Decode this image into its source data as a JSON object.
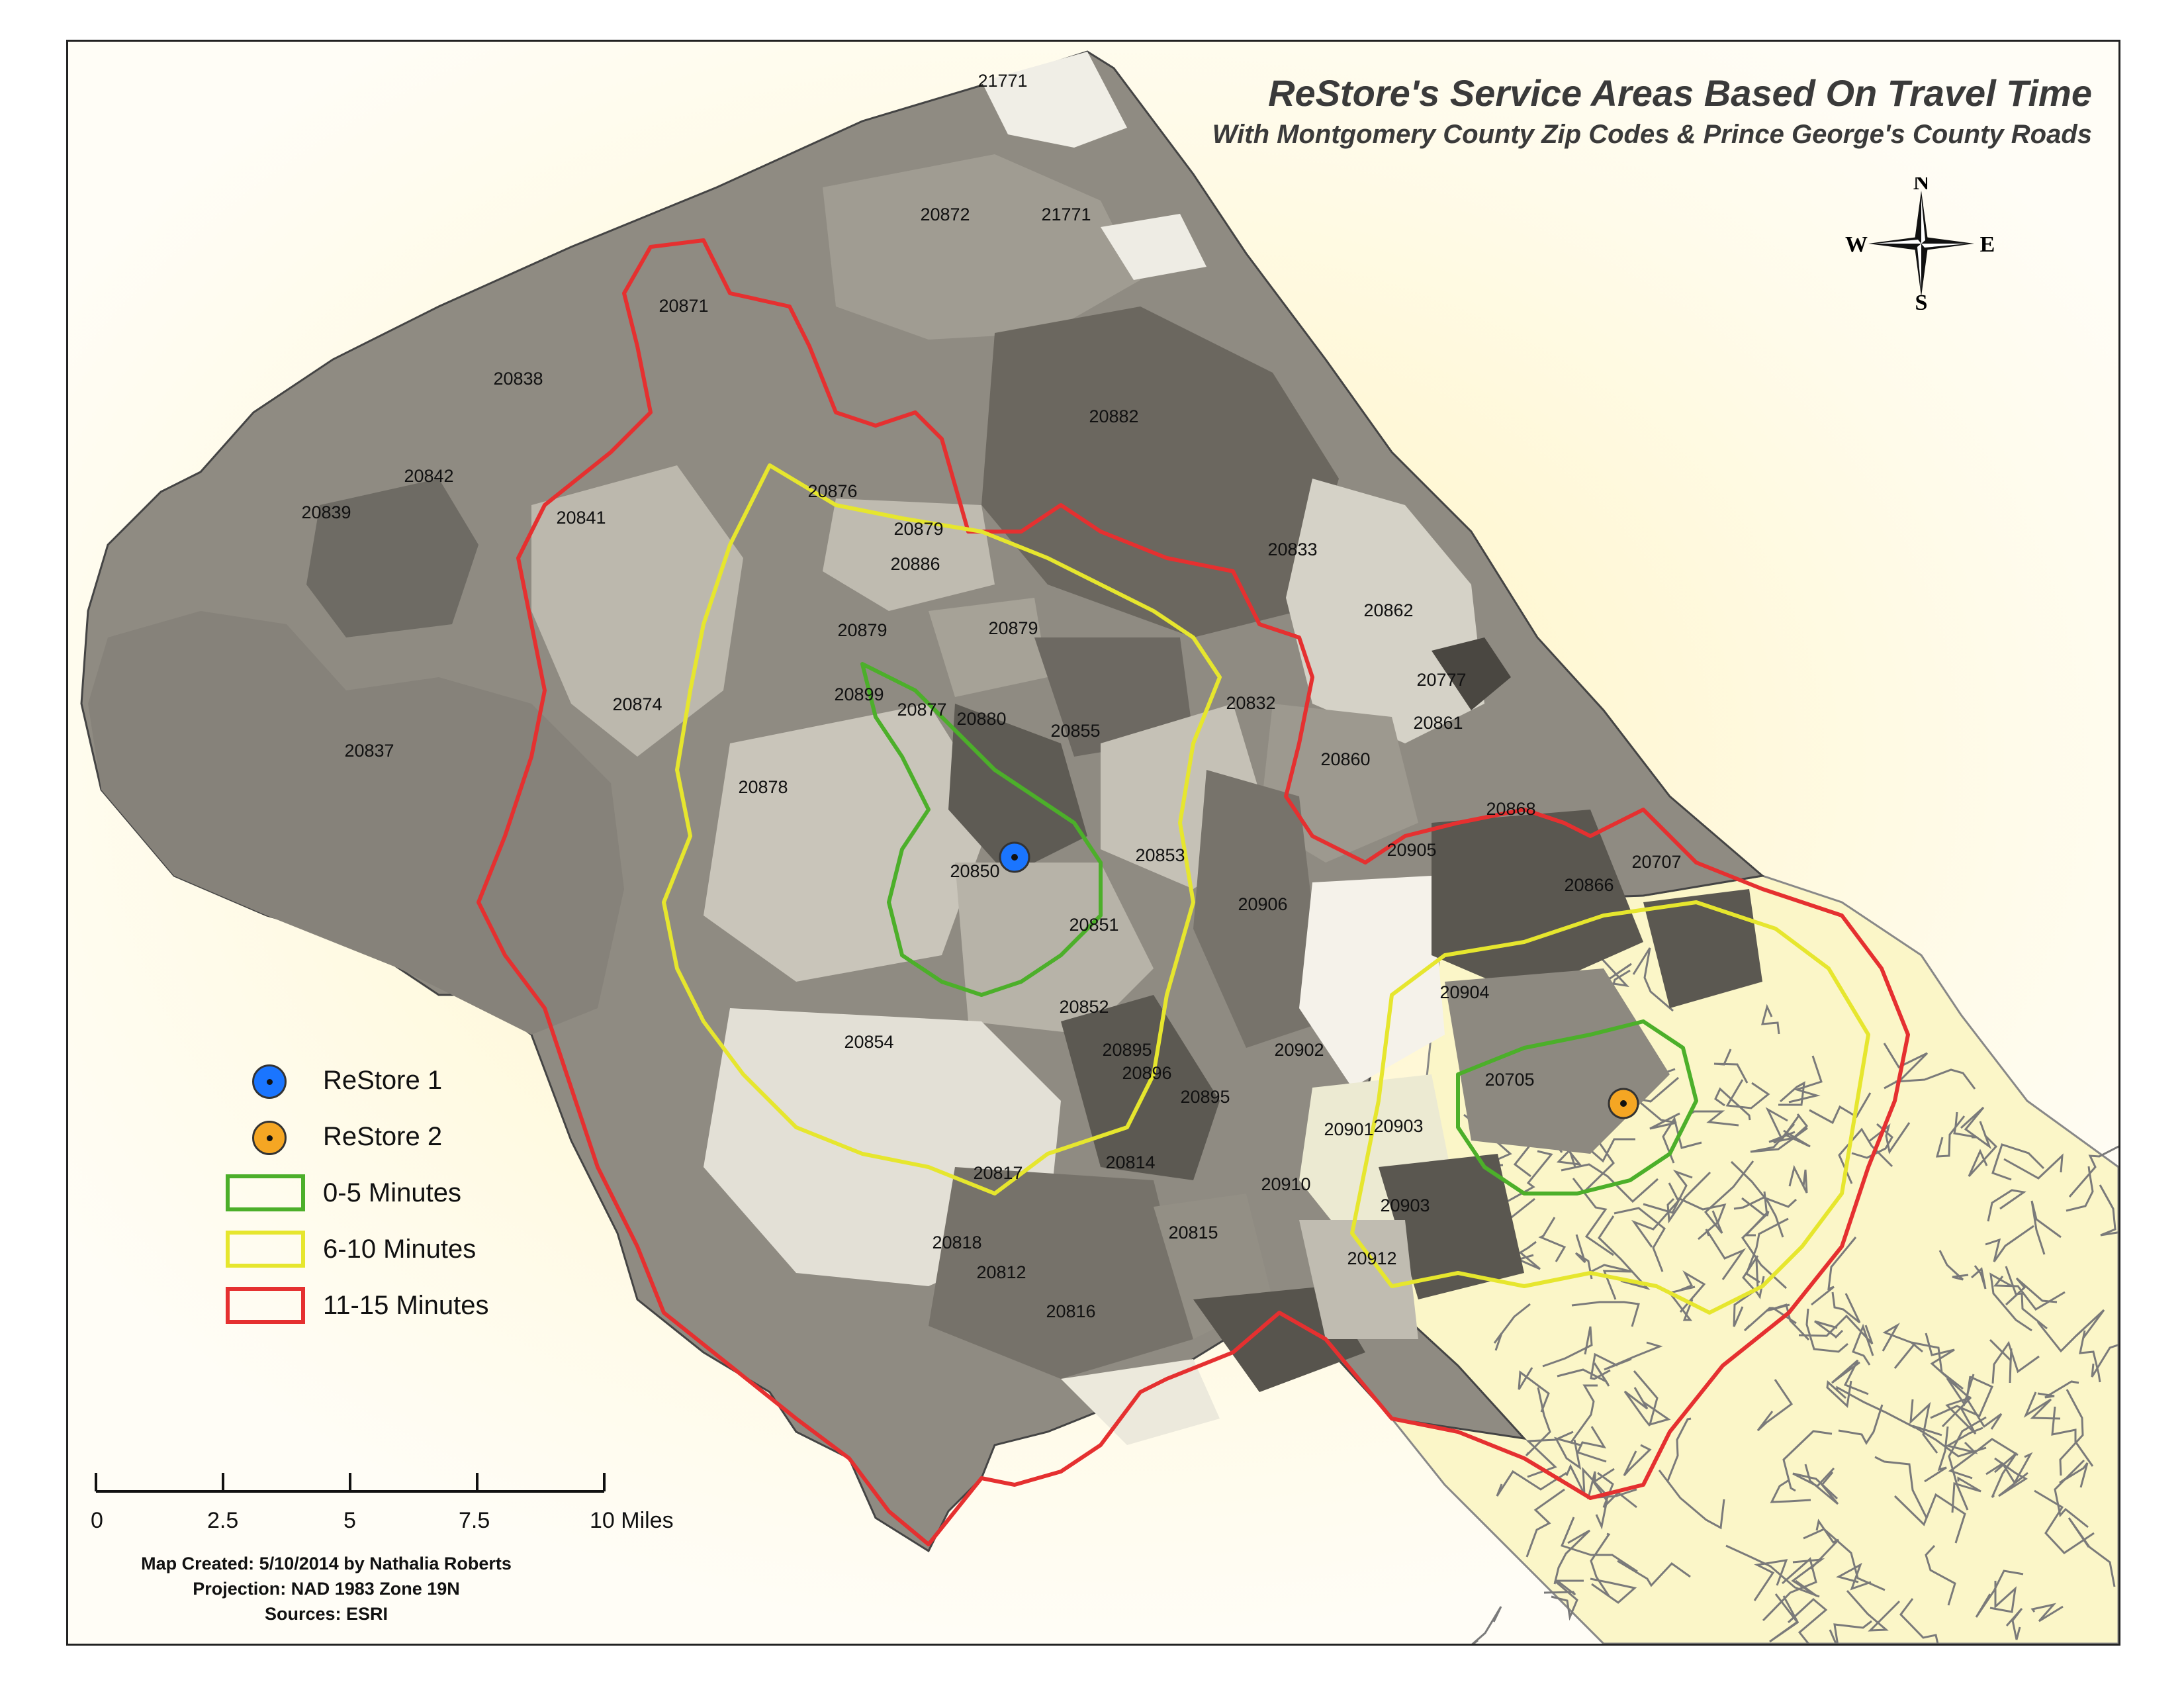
{
  "title": "ReStore's Service Areas Based On Travel Time",
  "subtitle": "With Montgomery County Zip Codes & Prince George's County Roads",
  "compass": {
    "n": "N",
    "s": "S",
    "e": "E",
    "w": "W"
  },
  "legend": {
    "restore1": {
      "label": "ReStore 1",
      "color": "#1a75ff"
    },
    "restore2": {
      "label": "ReStore 2",
      "color": "#f5a623"
    },
    "band1": {
      "label": "0-5 Minutes",
      "color": "#4caf2a"
    },
    "band2": {
      "label": "6-10 Minutes",
      "color": "#e6e62e"
    },
    "band3": {
      "label": "11-15 Minutes",
      "color": "#e53030"
    }
  },
  "scale_bar": {
    "ticks": [
      "0",
      "2.5",
      "5",
      "7.5",
      "10 Miles"
    ]
  },
  "credits": {
    "line1": "Map Created: 5/10/2014 by Nathalia Roberts",
    "line2": "Projection: NAD 1983 Zone 19N",
    "line3": "Sources: ESRI"
  },
  "zip_codes": [
    "21771",
    "20872",
    "21771",
    "20871",
    "20838",
    "20882",
    "20842",
    "20839",
    "20841",
    "20876",
    "20879",
    "20886",
    "20833",
    "20879",
    "20879",
    "20862",
    "20899",
    "20877",
    "20880",
    "20855",
    "20832",
    "20777",
    "20874",
    "20861",
    "20837",
    "20860",
    "20878",
    "20868",
    "20853",
    "20905",
    "20707",
    "20850",
    "20866",
    "20906",
    "20851",
    "20904",
    "20852",
    "20854",
    "20895",
    "20902",
    "20705",
    "20896",
    "20895",
    "20901",
    "20903",
    "20814",
    "20817",
    "20910",
    "20903",
    "20815",
    "20818",
    "20912",
    "20812",
    "20816"
  ]
}
